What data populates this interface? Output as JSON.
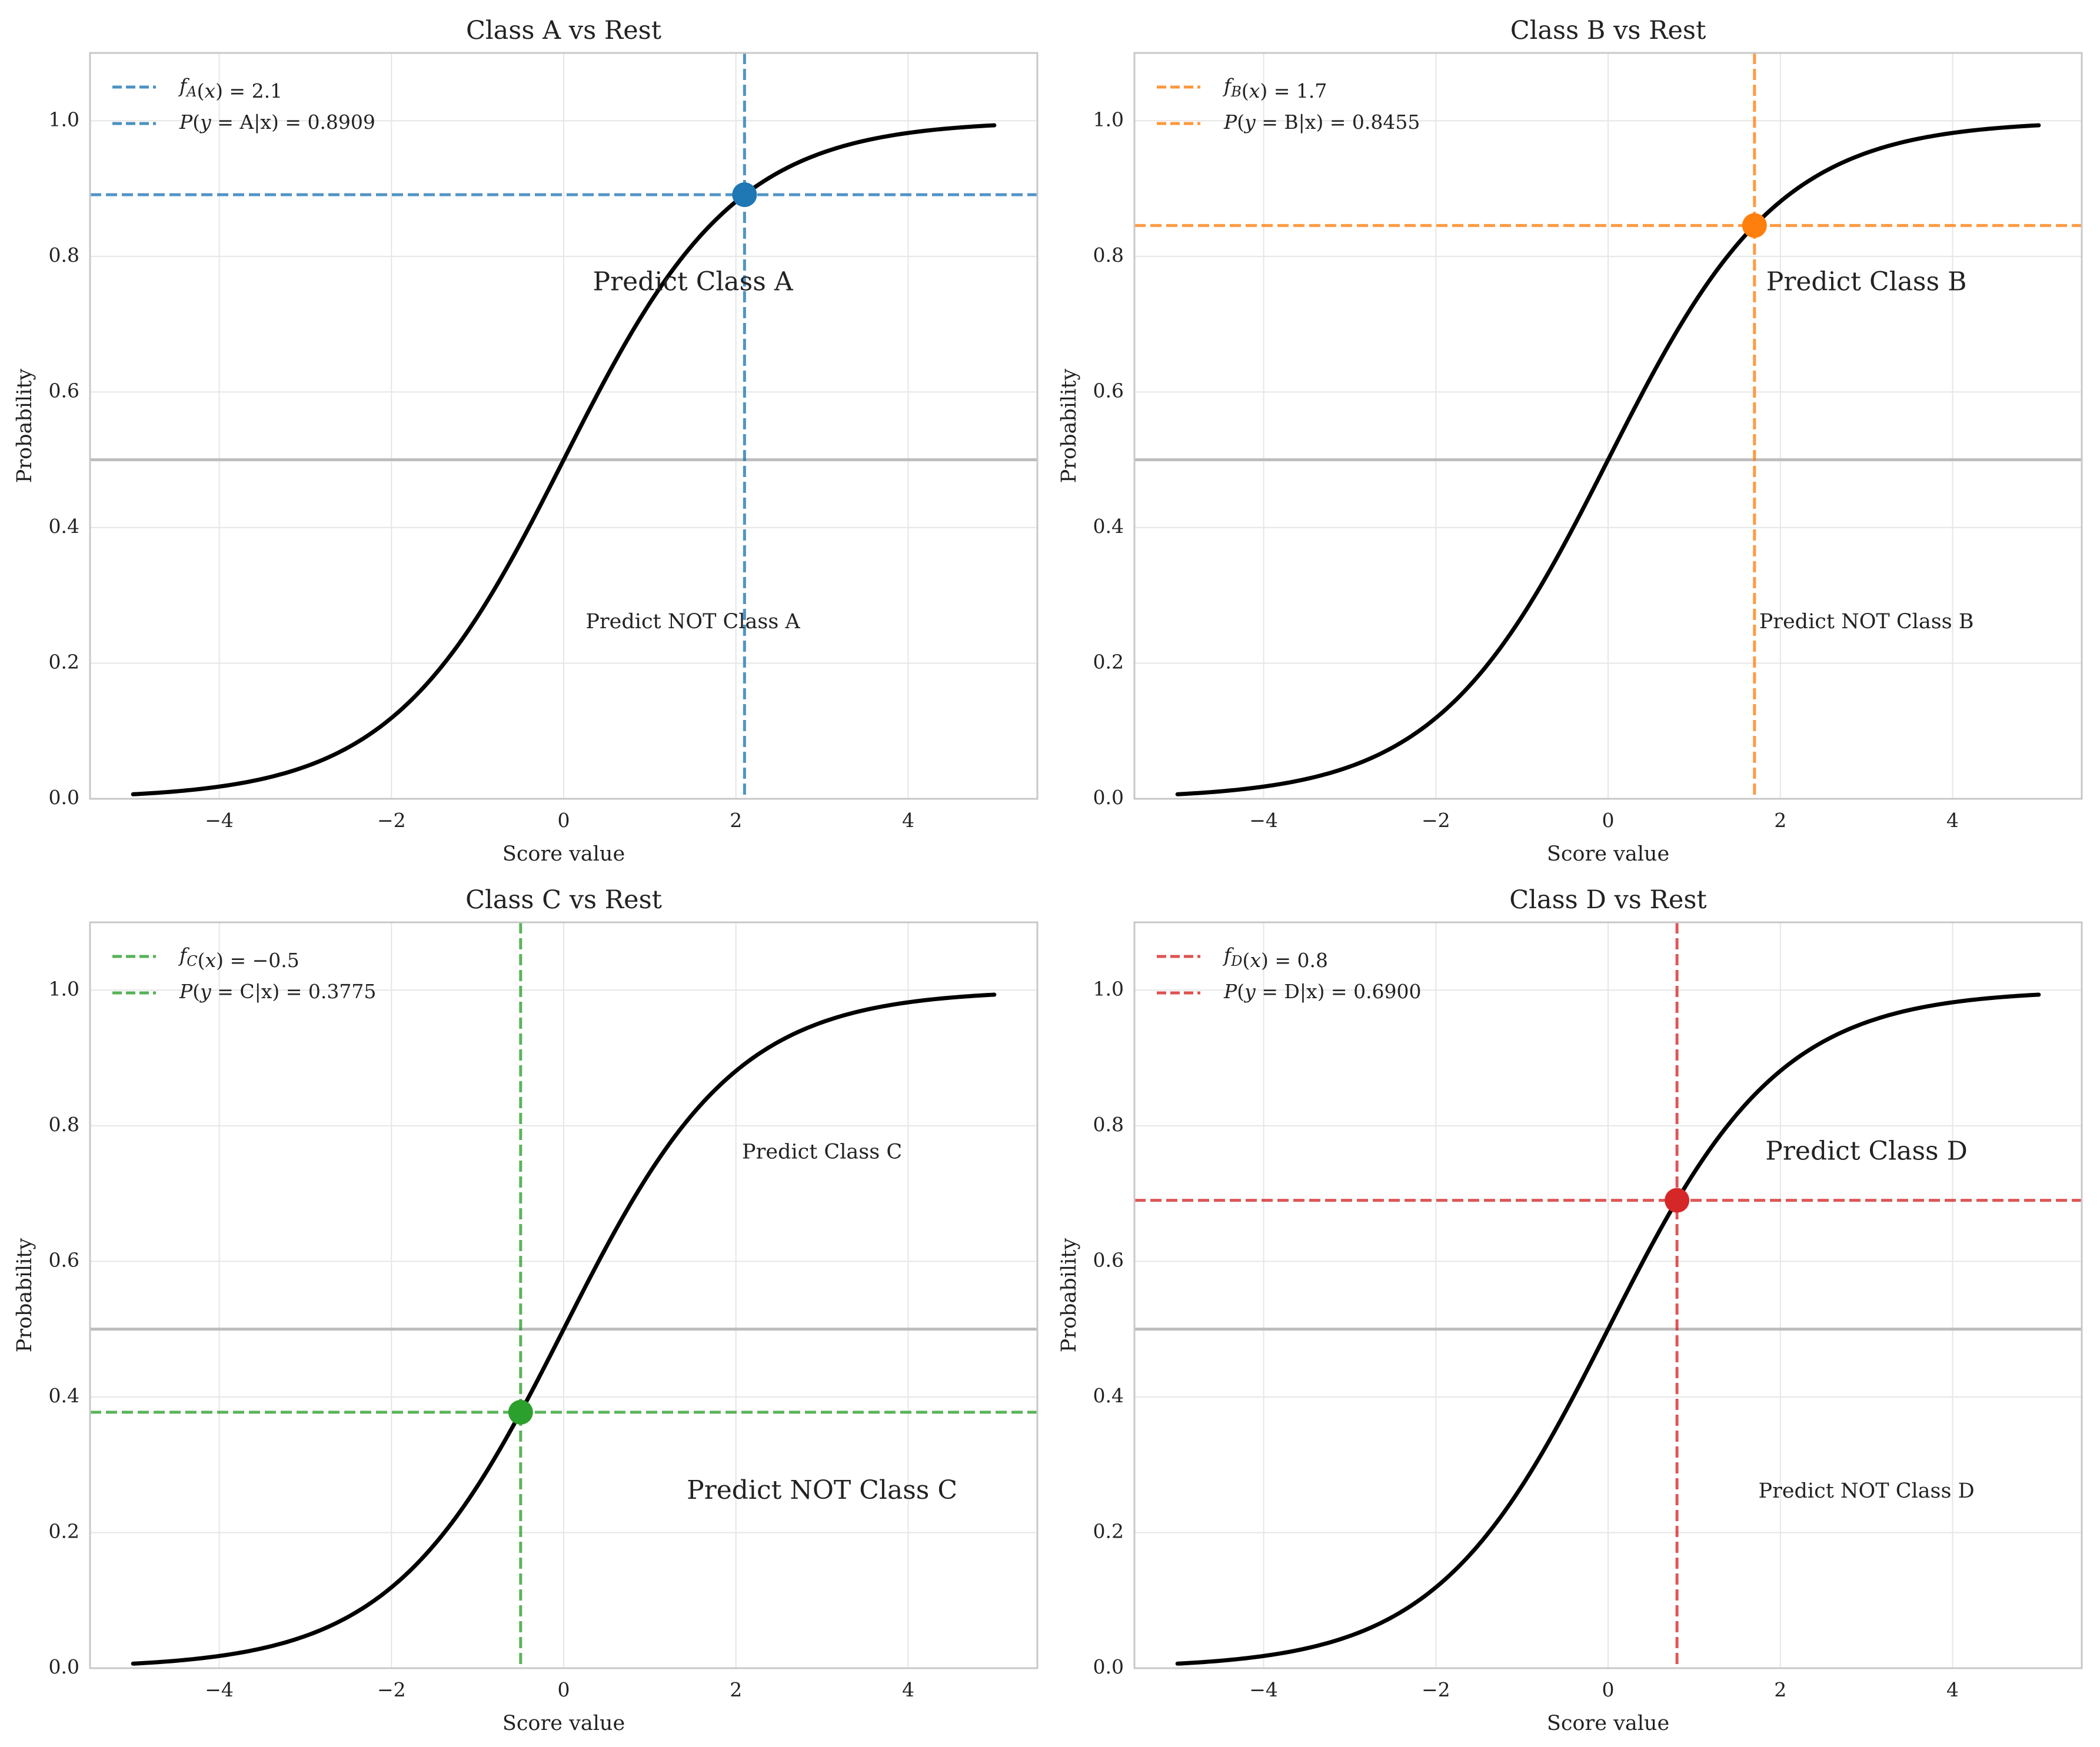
{
  "chart_data": [
    {
      "type": "line",
      "title": "Class A vs Rest",
      "xlabel": "Score value",
      "ylabel": "Probability",
      "xlim": [
        -5.5,
        5.5
      ],
      "ylim": [
        0,
        1.1
      ],
      "xticks": [
        -4,
        -2,
        0,
        2,
        4
      ],
      "xtick_labels": [
        "−4",
        "−2",
        "0",
        "2",
        "4"
      ],
      "yticks": [
        0.0,
        0.2,
        0.4,
        0.6,
        0.8,
        1.0
      ],
      "ytick_labels": [
        "0.0",
        "0.2",
        "0.4",
        "0.6",
        "0.8",
        "1.0"
      ],
      "grid": true,
      "legend_position": "top-left",
      "curve": {
        "function": "sigmoid",
        "x_range": [
          -5,
          5
        ],
        "color": "#000000"
      },
      "threshold": 0.5,
      "point": {
        "x": 2.1,
        "y": 0.8909
      },
      "color": "#1f77b4",
      "legend": [
        "f_A(x) = 2.1",
        "P(y = A|x) = 0.8909"
      ],
      "annotations": [
        {
          "text": "Predict Class A",
          "x": 1.5,
          "y": 0.76,
          "size": "large"
        },
        {
          "text": "Predict NOT Class A",
          "x": 1.5,
          "y": 0.26,
          "size": "small"
        }
      ]
    },
    {
      "type": "line",
      "title": "Class B vs Rest",
      "xlabel": "Score value",
      "ylabel": "Probability",
      "xlim": [
        -5.5,
        5.5
      ],
      "ylim": [
        0,
        1.1
      ],
      "xticks": [
        -4,
        -2,
        0,
        2,
        4
      ],
      "xtick_labels": [
        "−4",
        "−2",
        "0",
        "2",
        "4"
      ],
      "yticks": [
        0.0,
        0.2,
        0.4,
        0.6,
        0.8,
        1.0
      ],
      "ytick_labels": [
        "0.0",
        "0.2",
        "0.4",
        "0.6",
        "0.8",
        "1.0"
      ],
      "grid": true,
      "legend_position": "top-left",
      "curve": {
        "function": "sigmoid",
        "x_range": [
          -5,
          5
        ],
        "color": "#000000"
      },
      "threshold": 0.5,
      "point": {
        "x": 1.7,
        "y": 0.8455
      },
      "color": "#ff7f0e",
      "legend": [
        "f_B(x) = 1.7",
        "P(y = B|x) = 0.8455"
      ],
      "annotations": [
        {
          "text": "Predict Class B",
          "x": 3.0,
          "y": 0.76,
          "size": "large"
        },
        {
          "text": "Predict NOT Class B",
          "x": 3.0,
          "y": 0.26,
          "size": "small"
        }
      ]
    },
    {
      "type": "line",
      "title": "Class C vs Rest",
      "xlabel": "Score value",
      "ylabel": "Probability",
      "xlim": [
        -5.5,
        5.5
      ],
      "ylim": [
        0,
        1.1
      ],
      "xticks": [
        -4,
        -2,
        0,
        2,
        4
      ],
      "xtick_labels": [
        "−4",
        "−2",
        "0",
        "2",
        "4"
      ],
      "yticks": [
        0.0,
        0.2,
        0.4,
        0.6,
        0.8,
        1.0
      ],
      "ytick_labels": [
        "0.0",
        "0.2",
        "0.4",
        "0.6",
        "0.8",
        "1.0"
      ],
      "grid": true,
      "legend_position": "top-left",
      "curve": {
        "function": "sigmoid",
        "x_range": [
          -5,
          5
        ],
        "color": "#000000"
      },
      "threshold": 0.5,
      "point": {
        "x": -0.5,
        "y": 0.3775
      },
      "color": "#2ca02c",
      "legend": [
        "f_C(x) = −0.5",
        "P(y = C|x) = 0.3775"
      ],
      "annotations": [
        {
          "text": "Predict Class C",
          "x": 3.0,
          "y": 0.76,
          "size": "small"
        },
        {
          "text": "Predict NOT Class C",
          "x": 3.0,
          "y": 0.26,
          "size": "large"
        }
      ]
    },
    {
      "type": "line",
      "title": "Class D vs Rest",
      "xlabel": "Score value",
      "ylabel": "Probability",
      "xlim": [
        -5.5,
        5.5
      ],
      "ylim": [
        0,
        1.1
      ],
      "xticks": [
        -4,
        -2,
        0,
        2,
        4
      ],
      "xtick_labels": [
        "−4",
        "−2",
        "0",
        "2",
        "4"
      ],
      "yticks": [
        0.0,
        0.2,
        0.4,
        0.6,
        0.8,
        1.0
      ],
      "ytick_labels": [
        "0.0",
        "0.2",
        "0.4",
        "0.6",
        "0.8",
        "1.0"
      ],
      "grid": true,
      "legend_position": "top-left",
      "curve": {
        "function": "sigmoid",
        "x_range": [
          -5,
          5
        ],
        "color": "#000000"
      },
      "threshold": 0.5,
      "point": {
        "x": 0.8,
        "y": 0.69
      },
      "color": "#d62728",
      "legend": [
        "f_D(x) = 0.8",
        "P(y = D|x) = 0.6900"
      ],
      "annotations": [
        {
          "text": "Predict Class D",
          "x": 3.0,
          "y": 0.76,
          "size": "large"
        },
        {
          "text": "Predict NOT Class D",
          "x": 3.0,
          "y": 0.26,
          "size": "small"
        }
      ]
    }
  ]
}
